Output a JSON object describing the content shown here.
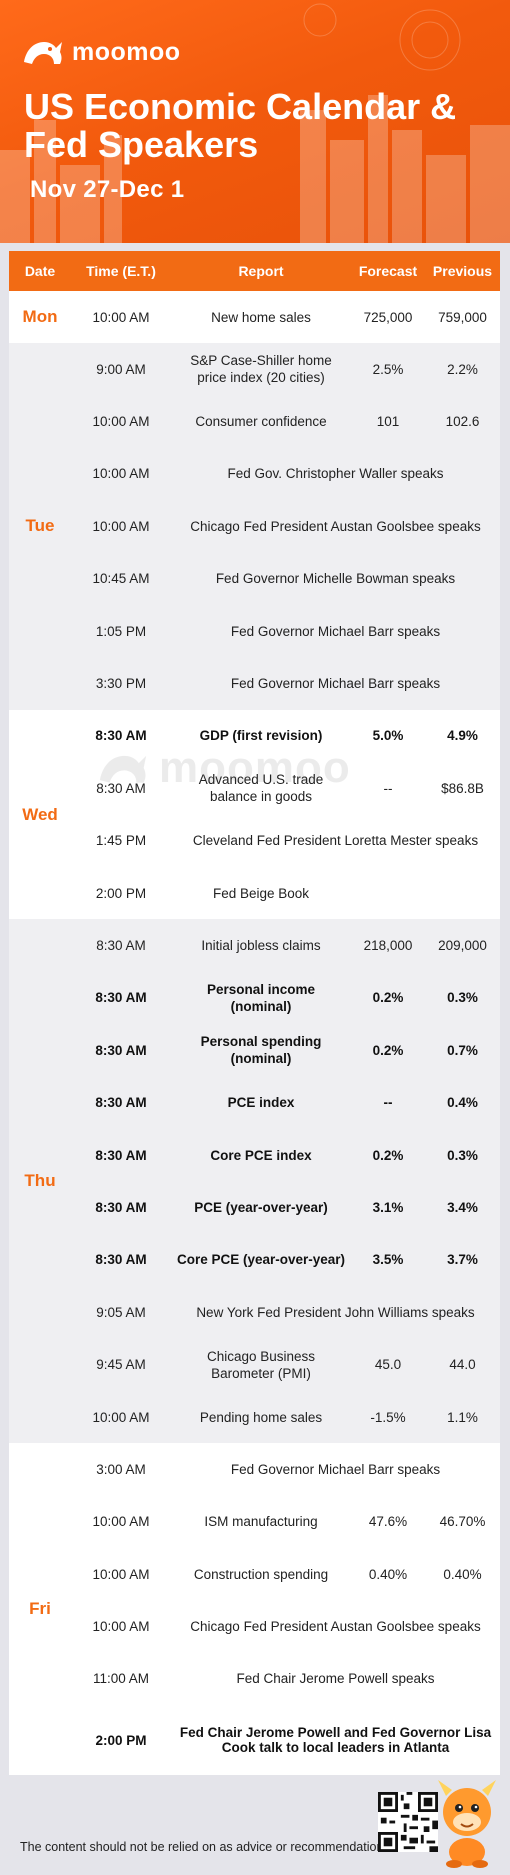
{
  "brand": {
    "name": "moomoo"
  },
  "header": {
    "title": "US Economic Calendar & Fed Speakers",
    "dates": "Nov 27-Dec 1"
  },
  "table": {
    "columns": [
      "Date",
      "Time (E.T.)",
      "Report",
      "Forecast",
      "Previous"
    ],
    "days": [
      {
        "day": "Mon",
        "rows": [
          {
            "time": "10:00 AM",
            "report": "New home sales",
            "forecast": "725,000",
            "previous": "759,000"
          }
        ]
      },
      {
        "day": "Tue",
        "rows": [
          {
            "time": "9:00 AM",
            "report": "S&P Case-Shiller home price index (20 cities)",
            "forecast": "2.5%",
            "previous": "2.2%"
          },
          {
            "time": "10:00 AM",
            "report": "Consumer confidence",
            "forecast": "101",
            "previous": "102.6"
          },
          {
            "time": "10:00 AM",
            "report": "Fed Gov. Christopher Waller speaks"
          },
          {
            "time": "10:00 AM",
            "report": "Chicago Fed President Austan Goolsbee speaks"
          },
          {
            "time": "10:45 AM",
            "report": "Fed Governor Michelle Bowman speaks"
          },
          {
            "time": "1:05 PM",
            "report": "Fed Governor Michael Barr speaks"
          },
          {
            "time": "3:30 PM",
            "report": "Fed Governor Michael Barr speaks"
          }
        ]
      },
      {
        "day": "Wed",
        "rows": [
          {
            "time": "8:30 AM",
            "report": "GDP (first revision)",
            "forecast": "5.0%",
            "previous": "4.9%",
            "bold": true
          },
          {
            "time": "8:30 AM",
            "report": "Advanced U.S. trade balance in goods",
            "forecast": "--",
            "previous": "$86.8B"
          },
          {
            "time": "1:45 PM",
            "report": "Cleveland Fed President Loretta Mester speaks"
          },
          {
            "time": "2:00 PM",
            "report": "Fed Beige Book",
            "forecast": "",
            "previous": ""
          }
        ]
      },
      {
        "day": "Thu",
        "rows": [
          {
            "time": "8:30 AM",
            "report": "Initial jobless claims",
            "forecast": "218,000",
            "previous": "209,000"
          },
          {
            "time": "8:30 AM",
            "report": "Personal income (nominal)",
            "forecast": "0.2%",
            "previous": "0.3%",
            "bold": true
          },
          {
            "time": "8:30 AM",
            "report": "Personal spending (nominal)",
            "forecast": "0.2%",
            "previous": "0.7%",
            "bold": true
          },
          {
            "time": "8:30 AM",
            "report": "PCE index",
            "forecast": "--",
            "previous": "0.4%",
            "bold": true
          },
          {
            "time": "8:30 AM",
            "report": "Core PCE index",
            "forecast": "0.2%",
            "previous": "0.3%",
            "bold": true
          },
          {
            "time": "8:30 AM",
            "report": "PCE (year-over-year)",
            "forecast": "3.1%",
            "previous": "3.4%",
            "bold": true
          },
          {
            "time": "8:30 AM",
            "report": "Core PCE (year-over-year)",
            "forecast": "3.5%",
            "previous": "3.7%",
            "bold": true
          },
          {
            "time": "9:05 AM",
            "report": "New York Fed President John Williams speaks"
          },
          {
            "time": "9:45 AM",
            "report": "Chicago Business Barometer (PMI)",
            "forecast": "45.0",
            "previous": "44.0"
          },
          {
            "time": "10:00 AM",
            "report": "Pending home sales",
            "forecast": "-1.5%",
            "previous": "1.1%"
          }
        ]
      },
      {
        "day": "Fri",
        "rows": [
          {
            "time": "3:00 AM",
            "report": "Fed Governor Michael Barr speaks"
          },
          {
            "time": "10:00 AM",
            "report": "ISM manufacturing",
            "forecast": "47.6%",
            "previous": "46.70%"
          },
          {
            "time": "10:00 AM",
            "report": "Construction spending",
            "forecast": "0.40%",
            "previous": "0.40%"
          },
          {
            "time": "10:00 AM",
            "report": "Chicago Fed President Austan Goolsbee speaks"
          },
          {
            "time": "11:00 AM",
            "report": "Fed Chair Jerome Powell speaks"
          },
          {
            "time": "2:00 PM",
            "report": "Fed Chair Jerome Powell and Fed Governor Lisa Cook talk to local leaders in Atlanta",
            "bold": true,
            "tall": true
          }
        ]
      }
    ]
  },
  "footer": {
    "disclaimer": "The content should not be relied on as advice or recommendation."
  },
  "colors": {
    "accent": "#f26b14",
    "headerBg": "#f25a0d",
    "text": "#222222"
  }
}
